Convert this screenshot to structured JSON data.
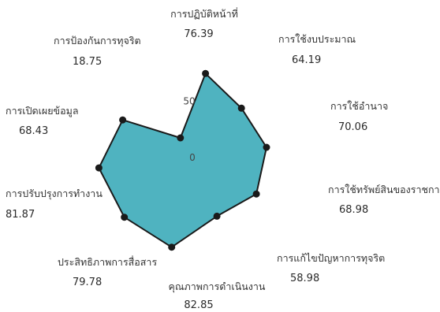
{
  "chart_data": {
    "type": "radar",
    "title": "",
    "radial_max": 100,
    "tick_labels": [
      "0",
      "50"
    ],
    "fill_color": "#4fb3c0",
    "line_color": "#1a1a1a",
    "categories": [
      {
        "label": "การปฏิบัติหน้าที่",
        "value": 76.39,
        "display": "76.39"
      },
      {
        "label": "การใช้งบประมาณ",
        "value": 64.19,
        "display": "64.19"
      },
      {
        "label": "การใช้อำนาจ",
        "value": 70.06,
        "display": "70.06"
      },
      {
        "label": "การใช้ทรัพย์สินของราชการ",
        "value": 68.98,
        "display": "68.98"
      },
      {
        "label": "การแก้ไขปัญหาการทุจริต",
        "value": 58.98,
        "display": "58.98"
      },
      {
        "label": "คุณภาพการดำเนินงาน",
        "value": 82.85,
        "display": "82.85"
      },
      {
        "label": "ประสิทธิภาพการสื่อสาร",
        "value": 79.78,
        "display": "79.78"
      },
      {
        "label": "การปรับปรุงการทำงาน",
        "value": 81.87,
        "display": "81.87"
      },
      {
        "label": "การเปิดเผยข้อมูล",
        "value": 68.43,
        "display": "68.43"
      },
      {
        "label": "การป้องกันการทุจริต",
        "value": 18.75,
        "display": "18.75"
      }
    ]
  }
}
